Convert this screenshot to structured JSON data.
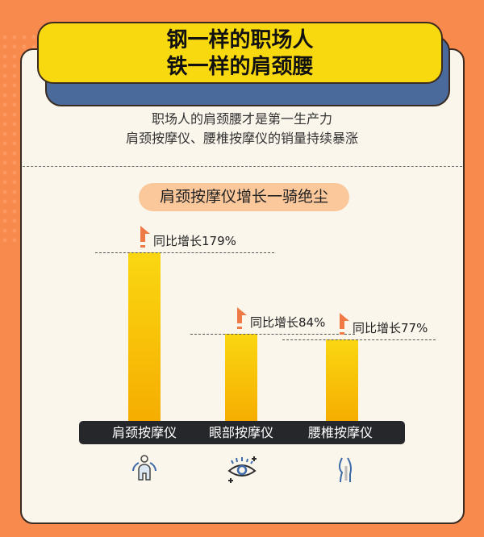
{
  "title": {
    "line1": "钢一样的职场人",
    "line2": "铁一样的肩颈腰"
  },
  "intro": {
    "line1": "职场人的肩颈腰才是第一生产力",
    "line2": "肩颈按摩仪、腰椎按摩仪的销量持续暴涨"
  },
  "section_title": "肩颈按摩仪增长一骑绝尘",
  "colors": {
    "background": "#f98a4d",
    "title_bg": "#f8d80e",
    "bar": "#f8c20a",
    "arrow": "#f07a45",
    "category_bar": "#25272a"
  },
  "chart_data": {
    "type": "bar",
    "categories": [
      "肩颈按摩仪",
      "眼部按摩仪",
      "腰椎按摩仪"
    ],
    "values": [
      179,
      84,
      77
    ],
    "unit": "%",
    "data_labels": [
      "同比增长179%",
      "同比增长84%",
      "同比增长77%"
    ],
    "icons": [
      "shoulder-person-icon",
      "eye-icon",
      "spine-waist-icon"
    ],
    "grid": false
  }
}
